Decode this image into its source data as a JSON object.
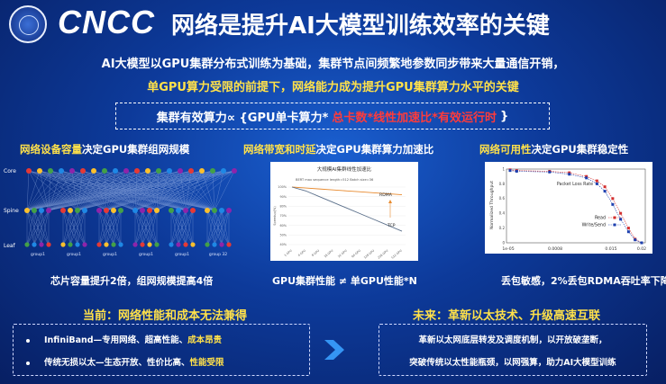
{
  "header": {
    "logo": "CNCC",
    "title": "网络是提升AI大模型训练效率的关键"
  },
  "intro": {
    "line1": "AI大模型以GPU集群分布式训练为基础，集群节点间频繁地参数同步带来大量通信开销，",
    "line2": "单GPU算力受限的前提下，网络能力成为提升GPU集群算力水平的关键"
  },
  "formula": {
    "lhs": "集群有效算力∝ {GPU单卡算力*",
    "rhs": "总卡数*线性加速比*有效运行时",
    "close": "}"
  },
  "sections": [
    {
      "highlight": "网络设备容量",
      "rest": "决定GPU集群组网规模",
      "caption": "芯片容量提升2倍，组网规模提高4倍"
    },
    {
      "highlight": "网络带宽和时延",
      "rest": "决定GPU集群算力加速比",
      "caption": "GPU集群性能 ≠ 单GPU性能*N"
    },
    {
      "highlight": "网络可用性",
      "rest": "决定GPU集群稳定性",
      "caption": "丢包敏感，2%丢包RDMA吞吐率下降为0"
    }
  ],
  "topology": {
    "layers": [
      "Core",
      "Spine",
      "Leaf"
    ],
    "groups": [
      "group1",
      "group1",
      "group1",
      "group1",
      "group1",
      "group 32"
    ],
    "colors": [
      "#e53935",
      "#fbc02d",
      "#43a047",
      "#1e88e5",
      "#8e24aa"
    ]
  },
  "chart_center": {
    "type": "line",
    "title": "大规模AI集群线性加速比",
    "subtitle": "BERT max sequence length=512 Batch size=36",
    "ylabel": "Speedup(%)",
    "yticks": [
      "100%",
      "90%",
      "80%",
      "70%",
      "60%",
      "50%",
      "40%"
    ],
    "ylim": [
      40,
      100
    ],
    "categories": [
      "1 GPU",
      "4 GPU",
      "8 GPU",
      "16 GPU",
      "32 GPU",
      "64 GPU",
      "128 GPU",
      "256 GPU",
      "512 GPU"
    ],
    "series": [
      {
        "name": "RDMA",
        "values": [
          100,
          99,
          98,
          97,
          96,
          95,
          94,
          93,
          92
        ]
      },
      {
        "name": "TCP",
        "values": [
          100,
          96,
          90,
          84,
          78,
          72,
          66,
          60,
          54
        ]
      }
    ]
  },
  "chart_right": {
    "type": "line",
    "xlabel": "Packet Loss Rate",
    "ylabel": "Normalized Throughput",
    "xticks": [
      "1e-05",
      "0.0008",
      "0.015",
      "0.02"
    ],
    "yticks": [
      "1",
      "0.8",
      "0.6",
      "0.4",
      "0.2",
      "0"
    ],
    "ylim": [
      0,
      1
    ],
    "series": [
      {
        "name": "Read",
        "color": "#d32f2f",
        "x": [
          0,
          0.05,
          0.3,
          0.45,
          0.58,
          0.66,
          0.72,
          0.78,
          0.84,
          0.9,
          0.95,
          1.0
        ],
        "values": [
          0.99,
          0.98,
          0.97,
          0.95,
          0.9,
          0.84,
          0.76,
          0.6,
          0.4,
          0.2,
          0.05,
          0.0
        ]
      },
      {
        "name": "Write/Send",
        "color": "#1e40af",
        "x": [
          0,
          0.05,
          0.3,
          0.45,
          0.58,
          0.66,
          0.72,
          0.78,
          0.84,
          0.9,
          0.95,
          1.0
        ],
        "values": [
          0.98,
          0.97,
          0.96,
          0.93,
          0.88,
          0.8,
          0.7,
          0.52,
          0.32,
          0.15,
          0.04,
          0.0
        ]
      }
    ]
  },
  "bottom": {
    "left_title": "当前：网络性能和成本无法兼得",
    "left_items": [
      {
        "plain": "InfiniBand—专用网络、超高性能、",
        "hl": "成本昂贵"
      },
      {
        "plain": "传统无损以太—生态开放、性价比高、",
        "hl": "性能受限"
      }
    ],
    "right_title": "未来：革新以太技术、升级高速互联",
    "right_lines": [
      "革新以太网底层转发及调度机制，以开放破垄断，",
      "突破传统以太性能瓶颈，以网强算，助力AI大模型训练"
    ]
  }
}
